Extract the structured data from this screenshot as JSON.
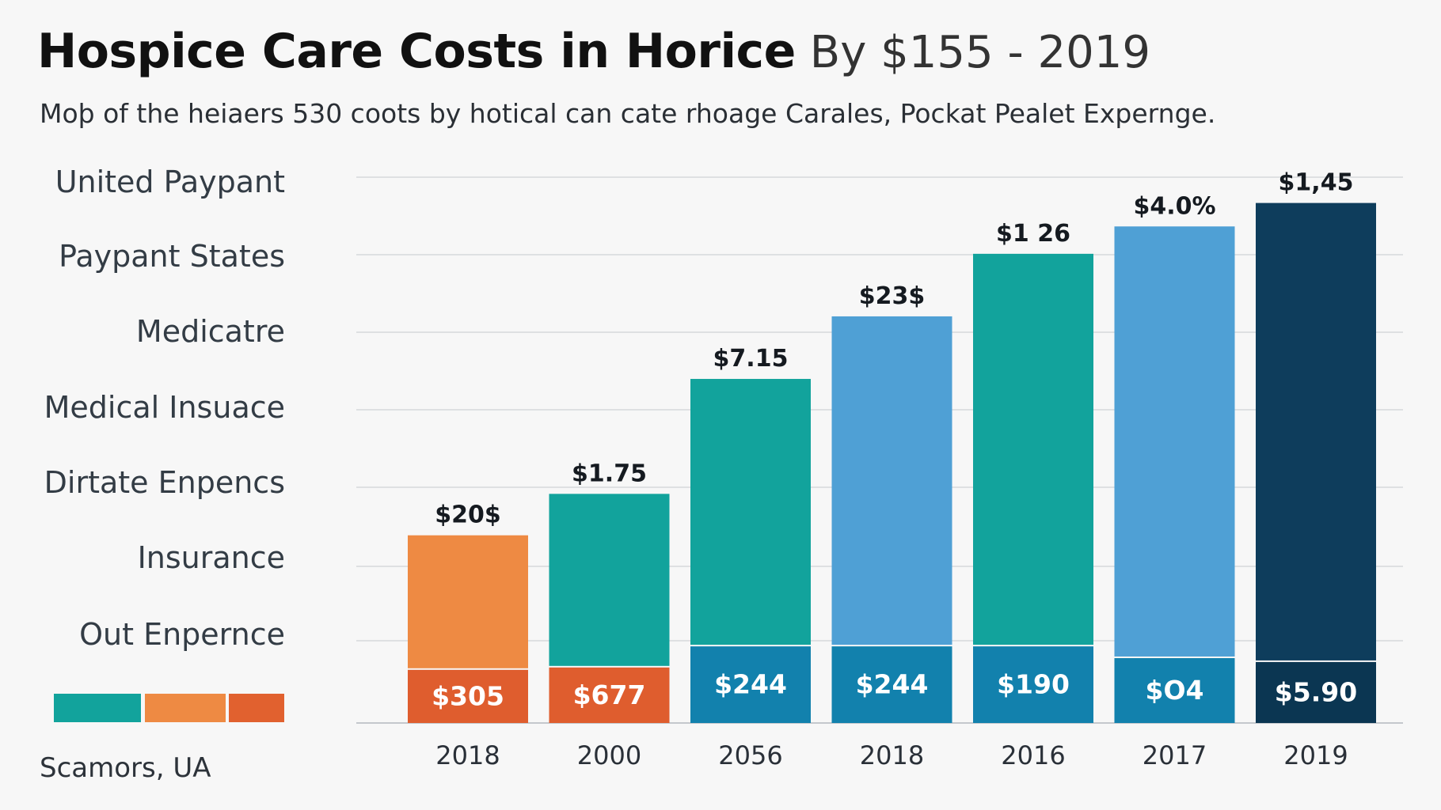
{
  "title": "Hospice Care Costs in Horice",
  "title_suffix": "By $155 - 2019",
  "subtitle": "Moþ of the heiaers 530 coots by hotical can cate rhoage Carales, Pockat Pealet Expernge.",
  "left_labels": [
    "United Paypant",
    "Paypant States",
    "Medicatre",
    "Medical Insuace",
    "Dirtate Enpencs",
    "Insurance",
    "Out Enpernce"
  ],
  "legend_colors": [
    "#12a39c",
    "#ee8a43",
    "#e1612f"
  ],
  "footer": "Scamors, UA",
  "colors": {
    "orange": "#ee8a43",
    "teal": "#12a39c",
    "blue": "#4fa0d5",
    "navy": "#0e3d5c",
    "bottom_orange": "#df5d2e",
    "bottom_blue": "#1281ad",
    "bottom_navy": "#0b3652",
    "grid": "#d5d8db"
  },
  "chart_data": {
    "type": "bar",
    "stacked": true,
    "categories": [
      "2018",
      "2000",
      "2056",
      "2018",
      "2016",
      "2017",
      "2019"
    ],
    "ylim": [
      0,
      700
    ],
    "grid": true,
    "series": [
      {
        "values": [
          70,
          73,
          100,
          100,
          100,
          85,
          80
        ],
        "labels": [
          "$305",
          "$677",
          "$244",
          "$244",
          "$190",
          "$O4",
          "$5.90"
        ],
        "colors": [
          "#df5d2e",
          "#df5d2e",
          "#1281ad",
          "#1281ad",
          "#1281ad",
          "#1281ad",
          "#0b3652"
        ]
      },
      {
        "values": [
          170,
          220,
          340,
          420,
          500,
          550,
          585
        ],
        "labels": [
          "$20$",
          "$1.75",
          "$7.15",
          "$23$",
          "$1 26",
          "$4.0%",
          "$1,45"
        ],
        "colors": [
          "#ee8a43",
          "#12a39c",
          "#12a39c",
          "#4fa0d5",
          "#12a39c",
          "#4fa0d5",
          "#0e3d5c"
        ]
      }
    ]
  }
}
